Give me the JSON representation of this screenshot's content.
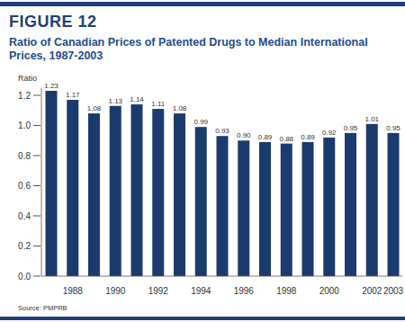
{
  "chart_data": {
    "type": "bar",
    "title": "FIGURE 12",
    "subtitle": "Ratio of Canadian Prices of Patented Drugs to Median International Prices, 1987-2003",
    "y_label": "Ratio",
    "source": "Source: PMPRB",
    "categories": [
      null,
      "1988",
      null,
      "1990",
      null,
      "1992",
      null,
      "1994",
      null,
      "1996",
      null,
      "1998",
      null,
      "2000",
      null,
      "2002",
      "2003"
    ],
    "values": [
      1.23,
      1.17,
      1.08,
      1.13,
      1.14,
      1.11,
      1.08,
      0.99,
      0.93,
      0.9,
      0.89,
      0.88,
      0.89,
      0.92,
      0.95,
      1.01,
      0.95
    ],
    "value_labels": [
      "1.23",
      "1.17",
      "1.08",
      "1.13",
      "1.14",
      "1.11",
      "1.08",
      "0.99",
      "0.93",
      "0.90",
      "0.89",
      "0.88",
      "0.89",
      "0.92",
      "0.95",
      "1.01",
      "0.95"
    ],
    "color": "#1b3b6f",
    "data_labels": true,
    "grid": false,
    "ylim": [
      0,
      1.25
    ],
    "yticks": [
      {
        "value": 0,
        "label": "0.0"
      },
      {
        "value": 0.2,
        "label": "0.2"
      },
      {
        "value": 0.4,
        "label": "0.4"
      },
      {
        "value": 0.6,
        "label": "0.6"
      },
      {
        "value": 0.8,
        "label": "0.8"
      },
      {
        "value": 1.0,
        "label": "1.0"
      },
      {
        "value": 1.2,
        "label": "1.2"
      }
    ]
  }
}
